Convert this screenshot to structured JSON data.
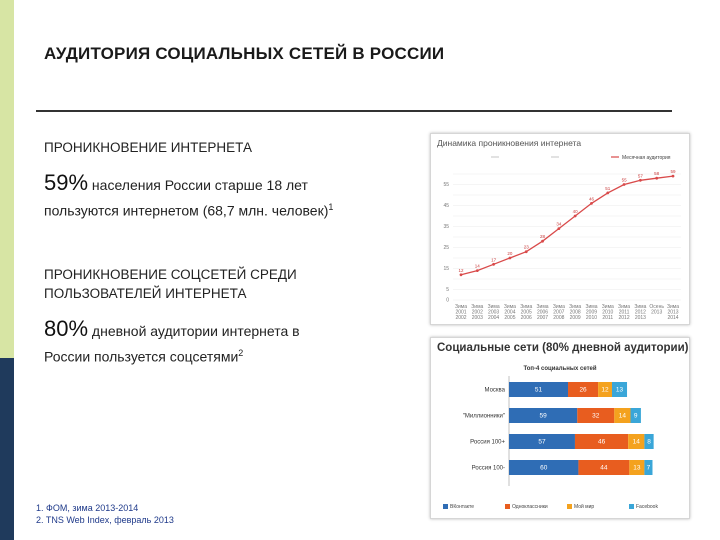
{
  "title": "АУДИТОРИЯ СОЦИАЛЬНЫХ СЕТЕЙ В РОССИИ",
  "section1": {
    "heading": "ПРОНИКНОВЕНИЕ ИНТЕРНЕТА",
    "big": "59%",
    "line1": " населения России старше 18 лет",
    "line2": "пользуются интернетом (68,7 млн. человек)",
    "sup": "1"
  },
  "section2": {
    "heading_line1": "ПРОНИКНОВЕНИЕ СОЦСЕТЕЙ СРЕДИ",
    "heading_line2": "ПОЛЬЗОВАТЕЛЕЙ  ИНТЕРНЕТА",
    "big": "80%",
    "line1": " дневной аудитории интернета в",
    "line2": "России пользуется соцсетями",
    "sup": "2"
  },
  "footnotes": [
    "1.  ФОМ, зима 2013-2014",
    "2.  TNS Web Index, февраль 2013"
  ],
  "colors": {
    "band_top": "#d7e5a4",
    "band_bottom": "#1f3a5c",
    "line": "#d94a4a",
    "vk": "#2f6db5",
    "ok": "#e85d1f",
    "mm": "#f4a21e",
    "fb": "#3aa6d8"
  },
  "chart_data": [
    {
      "type": "line",
      "title": "Динамика проникновения интернета",
      "legend": [
        "",
        "",
        "Месячная аудитория"
      ],
      "x": [
        "Зима 2001 2002",
        "Зима 2002 2003",
        "Зима 2003 2004",
        "Зима 2004 2005",
        "Зима 2005 2006",
        "Зима 2006 2007",
        "Зима 2007 2008",
        "Зима 2008 2009",
        "Зима 2009 2010",
        "Зима 2010 2011",
        "Зима 2011 2012",
        "Зима 2012 2013",
        "Осень 2013",
        "Зима 2013 2014"
      ],
      "y": [
        12,
        14,
        17,
        20,
        23,
        28,
        34,
        40,
        46,
        51,
        55,
        57,
        58,
        59
      ],
      "point_labels": [
        "12",
        "14",
        "17",
        "20",
        "23",
        "28",
        "34",
        "40",
        "46",
        "51",
        "55",
        "57",
        "58",
        "59"
      ],
      "yticks": [
        0,
        5,
        10,
        15,
        20,
        25,
        30,
        35,
        40,
        45,
        50,
        55,
        60
      ],
      "ylim": [
        0,
        60
      ]
    },
    {
      "type": "bar",
      "stacked": true,
      "orientation": "horizontal",
      "title": "Социальные сети (80% дневной аудитории)",
      "subtitle": "Топ-4 социальных сетей",
      "categories": [
        "Москва",
        "\"Миллионники\"",
        "Россия 100+",
        "Россия 100-"
      ],
      "series": [
        {
          "name": "ВКонтакте",
          "values": [
            51,
            59,
            57,
            60
          ]
        },
        {
          "name": "Одноклассники",
          "values": [
            26,
            32,
            46,
            44
          ]
        },
        {
          "name": "Мой мир",
          "values": [
            12,
            14,
            14,
            13
          ]
        },
        {
          "name": "Facebook",
          "values": [
            13,
            9,
            8,
            7
          ]
        }
      ],
      "xlim": [
        0,
        140
      ]
    }
  ]
}
